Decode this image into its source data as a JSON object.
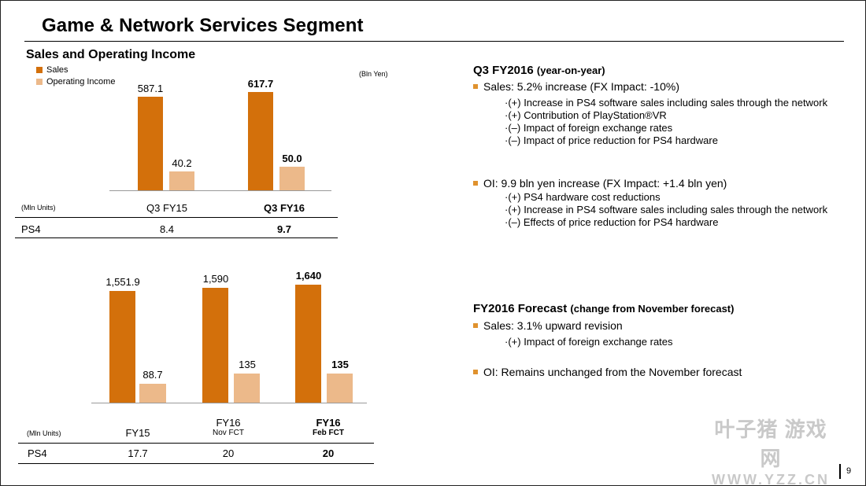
{
  "page": {
    "title": "Game & Network Services Segment",
    "page_number": "9"
  },
  "colors": {
    "sales": "#d3700b",
    "operating_income": "#ecb98a",
    "bullet": "#e0922e"
  },
  "left": {
    "subtitle": "Sales and Operating Income",
    "legend": {
      "sales": "Sales",
      "operating_income": "Operating Income"
    },
    "unit_bln": "(Bln Yen)",
    "top_chart": {
      "categories": [
        "Q3 FY15",
        "Q3 FY16"
      ],
      "sales": [
        "587.1",
        "617.7"
      ],
      "operating_income": [
        "40.2",
        "50.0"
      ],
      "table": {
        "unit": "(Mln Units)",
        "row_label": "PS4",
        "values": [
          "8.4",
          "9.7"
        ]
      }
    },
    "bottom_chart": {
      "categories": [
        {
          "main": "FY15",
          "sub": ""
        },
        {
          "main": "FY16",
          "sub": "Nov FCT"
        },
        {
          "main": "FY16",
          "sub": "Feb FCT"
        }
      ],
      "sales": [
        "1,551.9",
        "1,590",
        "1,640"
      ],
      "operating_income": [
        "88.7",
        "135",
        "135"
      ],
      "table": {
        "unit": "(Mln Units)",
        "row_label": "PS4",
        "values": [
          "17.7",
          "20",
          "20"
        ]
      }
    }
  },
  "chart_data": [
    {
      "type": "bar",
      "title": "Sales and Operating Income (Q3)",
      "ylabel": "Bln Yen",
      "categories": [
        "Q3 FY15",
        "Q3 FY16"
      ],
      "series": [
        {
          "name": "Sales",
          "values": [
            587.1,
            617.7
          ]
        },
        {
          "name": "Operating Income",
          "values": [
            40.2,
            50.0
          ]
        }
      ]
    },
    {
      "type": "bar",
      "title": "Sales and Operating Income (FY)",
      "ylabel": "Bln Yen",
      "categories": [
        "FY15",
        "FY16 Nov FCT",
        "FY16 Feb FCT"
      ],
      "series": [
        {
          "name": "Sales",
          "values": [
            1551.9,
            1590,
            1640
          ]
        },
        {
          "name": "Operating Income",
          "values": [
            88.7,
            135,
            135
          ]
        }
      ]
    }
  ],
  "right": {
    "q3": {
      "title": "Q3 FY2016",
      "title_note": "(year-on-year)",
      "sales_line": "Sales: 5.2% increase (FX Impact: -10%)",
      "sales_points": [
        "·(+) Increase in PS4 software sales including sales through the network",
        "·(+) Contribution of PlayStation®VR",
        "·(–) Impact of foreign exchange rates",
        "·(–) Impact of price reduction for PS4 hardware"
      ],
      "oi_line": "OI:  9.9 bln yen increase (FX Impact: +1.4 bln yen)",
      "oi_points": [
        "·(+) PS4 hardware cost reductions",
        "·(+) Increase in PS4 software sales including sales through the network",
        "·(–) Effects of price reduction for PS4 hardware"
      ]
    },
    "fy": {
      "title": "FY2016 Forecast",
      "title_note": "(change from November forecast)",
      "sales_line": "Sales: 3.1% upward revision",
      "sales_points": [
        "·(+) Impact of foreign exchange rates"
      ],
      "oi_line": "OI: Remains unchanged from the November forecast"
    }
  },
  "watermark": {
    "top": "叶子猪 游戏网",
    "bottom": "WWW.YZZ.CN"
  }
}
